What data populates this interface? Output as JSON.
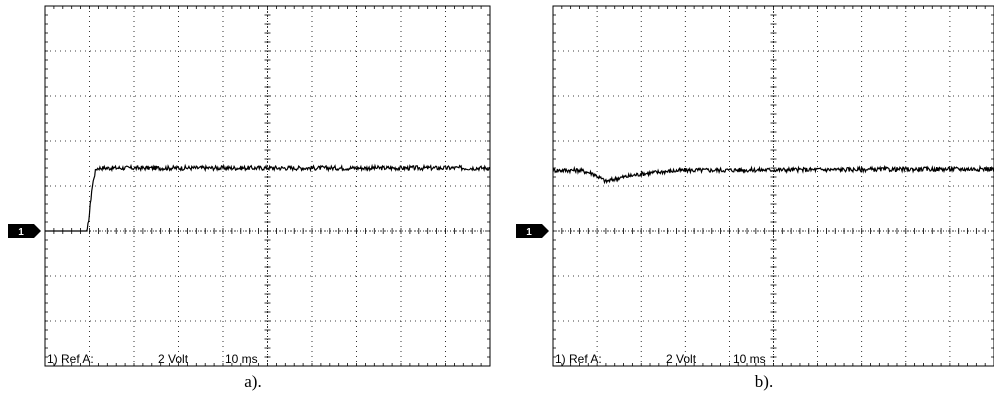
{
  "chart_data": [
    {
      "type": "line",
      "caption": "a).",
      "channel_marker": "1",
      "readout": {
        "ref": "1) Ref A:",
        "volts": "2 Volt",
        "time": "10 ms"
      },
      "grid": {
        "x_divisions": 10,
        "y_divisions": 8,
        "minor_per_division": 5
      },
      "ylim": [
        -3,
        5
      ],
      "xlim": [
        0,
        10
      ],
      "ground_level": 0,
      "series": [
        {
          "x": [
            0,
            0.95,
            1.0,
            1.05,
            1.1,
            1.15,
            1.2,
            10
          ],
          "y": [
            0,
            0,
            0.4,
            0.9,
            1.2,
            1.38,
            1.4,
            1.4
          ],
          "noise": 0.05
        }
      ]
    },
    {
      "type": "line",
      "caption": "b).",
      "channel_marker": "1",
      "readout": {
        "ref": "1) Ref A:",
        "volts": "2 Volt",
        "time": "10 ms"
      },
      "grid": {
        "x_divisions": 10,
        "y_divisions": 8,
        "minor_per_division": 5
      },
      "ylim": [
        -3,
        5
      ],
      "xlim": [
        0,
        10
      ],
      "ground_level": 0,
      "series": [
        {
          "x": [
            0,
            0.6,
            0.9,
            1.2,
            1.5,
            2.0,
            2.5,
            3.0,
            10
          ],
          "y": [
            1.35,
            1.35,
            1.28,
            1.1,
            1.18,
            1.27,
            1.32,
            1.35,
            1.38
          ],
          "noise": 0.05
        }
      ]
    }
  ]
}
